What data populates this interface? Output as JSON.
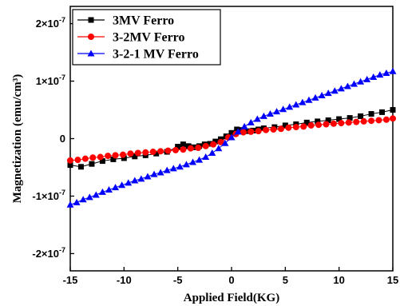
{
  "chart_data": {
    "type": "scatter",
    "xlabel": "Applied Field(KG)",
    "ylabel": "Magnetization (emu/cm³)",
    "xlim": [
      -15,
      15
    ],
    "ylim": [
      -2.3e-07,
      2.3e-07
    ],
    "x_ticks": [
      -15,
      -10,
      -5,
      0,
      5,
      10,
      15
    ],
    "x_tick_labels": [
      "-15",
      "-10",
      "-5",
      "0",
      "5",
      "10",
      "15"
    ],
    "y_ticks": [
      -2e-07,
      -1e-07,
      0,
      1e-07,
      2e-07
    ],
    "y_tick_labels": [
      {
        "mant": "-2×10",
        "exp": "-7"
      },
      {
        "mant": "-1×10",
        "exp": "-7"
      },
      {
        "mant": "0",
        "exp": ""
      },
      {
        "mant": "1×10",
        "exp": "-7"
      },
      {
        "mant": "2×10",
        "exp": "-7"
      }
    ],
    "legend_position": "top-left",
    "series": [
      {
        "name": "3MV Ferro",
        "color": "#000000",
        "marker": "square",
        "x": [
          -15,
          -14,
          -13,
          -12,
          -11,
          -10,
          -9,
          -8,
          -7,
          -6,
          -5,
          -4.5,
          -4,
          -3.5,
          -3,
          -2.5,
          -2,
          -1.5,
          -1,
          -0.5,
          0,
          0.5,
          1,
          1.5,
          2,
          2.5,
          3,
          4,
          5,
          6,
          7,
          8,
          9,
          10,
          11,
          12,
          13,
          14,
          15
        ],
        "y": [
          -4.6e-08,
          -4.9e-08,
          -4.4e-08,
          -3.9e-08,
          -3.6e-08,
          -3.4e-08,
          -3.1e-08,
          -2.9e-08,
          -2.6e-08,
          -2.3e-08,
          -1.4e-08,
          -1e-08,
          -1.3e-08,
          -1.5e-08,
          -1.3e-08,
          -1e-08,
          -9e-09,
          -5e-09,
          -1e-09,
          4e-09,
          1e-08,
          1.6e-08,
          1.5e-08,
          1.3e-08,
          1.4e-08,
          1.6e-08,
          1.8e-08,
          2e-08,
          2.3e-08,
          2.5e-08,
          2.8e-08,
          3e-08,
          3.2e-08,
          3.4e-08,
          3.6e-08,
          3.9e-08,
          4.3e-08,
          4.6e-08,
          5e-08
        ]
      },
      {
        "name": "3-2MV Ferro",
        "color": "#ff0000",
        "marker": "circle",
        "x": [
          -15,
          -14.3,
          -13.6,
          -12.9,
          -12.2,
          -11.5,
          -10.8,
          -10.1,
          -9.4,
          -8.7,
          -8,
          -7.3,
          -6.6,
          -5.9,
          -5.2,
          -4.5,
          -3.8,
          -3.1,
          -2.4,
          -1.7,
          -1,
          -0.3,
          0.4,
          1.1,
          1.8,
          2.5,
          3.2,
          3.9,
          4.6,
          5.3,
          6,
          6.7,
          7.4,
          8.1,
          8.8,
          9.5,
          10.2,
          10.9,
          11.6,
          12.3,
          13,
          13.7,
          14.4,
          15
        ],
        "y": [
          -3.8e-08,
          -3.7e-08,
          -3.5e-08,
          -3.3e-08,
          -3.2e-08,
          -3e-08,
          -2.9e-08,
          -2.8e-08,
          -2.6e-08,
          -2.5e-08,
          -2.4e-08,
          -2.3e-08,
          -2.2e-08,
          -2.1e-08,
          -2e-08,
          -1.9e-08,
          -1.7e-08,
          -1.6e-08,
          -1.3e-08,
          -1e-08,
          -6e-09,
          2e-09,
          8e-09,
          1.1e-08,
          1.2e-08,
          1.3e-08,
          1.5e-08,
          1.6e-08,
          1.7e-08,
          1.9e-08,
          2e-08,
          2.1e-08,
          2.3e-08,
          2.4e-08,
          2.5e-08,
          2.6e-08,
          2.7e-08,
          2.8e-08,
          2.9e-08,
          3e-08,
          3.1e-08,
          3.2e-08,
          3.3e-08,
          3.5e-08
        ]
      },
      {
        "name": "3-2-1 MV Ferro",
        "color": "#0000ff",
        "marker": "triangle",
        "x": [
          -15,
          -14.4,
          -13.8,
          -13.2,
          -12.6,
          -12,
          -11.4,
          -10.8,
          -10.2,
          -9.6,
          -9,
          -8.4,
          -7.8,
          -7.2,
          -6.6,
          -6,
          -5.4,
          -4.8,
          -4.2,
          -3.6,
          -3,
          -2.4,
          -1.8,
          -1.2,
          -0.6,
          0,
          0.6,
          1.2,
          1.8,
          2.4,
          3,
          3.6,
          4.2,
          4.8,
          5.4,
          6,
          6.6,
          7.2,
          7.8,
          8.4,
          9,
          9.6,
          10.2,
          10.8,
          11.4,
          12,
          12.6,
          13.2,
          13.8,
          14.4,
          15
        ],
        "y": [
          -1.15e-07,
          -1.11e-07,
          -1.06e-07,
          -1.02e-07,
          -9.8e-08,
          -9.3e-08,
          -8.9e-08,
          -8.5e-08,
          -8.1e-08,
          -7.7e-08,
          -7.3e-08,
          -7e-08,
          -6.6e-08,
          -6.2e-08,
          -5.9e-08,
          -5.5e-08,
          -5.2e-08,
          -4.9e-08,
          -4.5e-08,
          -4.1e-08,
          -3.7e-08,
          -3.2e-08,
          -2.5e-08,
          -1.7e-08,
          -8e-09,
          2e-09,
          1.2e-08,
          2.1e-08,
          2.8e-08,
          3.4e-08,
          3.9e-08,
          4.3e-08,
          4.7e-08,
          5.1e-08,
          5.5e-08,
          5.9e-08,
          6.3e-08,
          6.7e-08,
          7.1e-08,
          7.5e-08,
          7.9e-08,
          8.3e-08,
          8.7e-08,
          9.1e-08,
          9.5e-08,
          9.9e-08,
          1.03e-07,
          1.07e-07,
          1.11e-07,
          1.14e-07,
          1.17e-07
        ]
      }
    ]
  }
}
